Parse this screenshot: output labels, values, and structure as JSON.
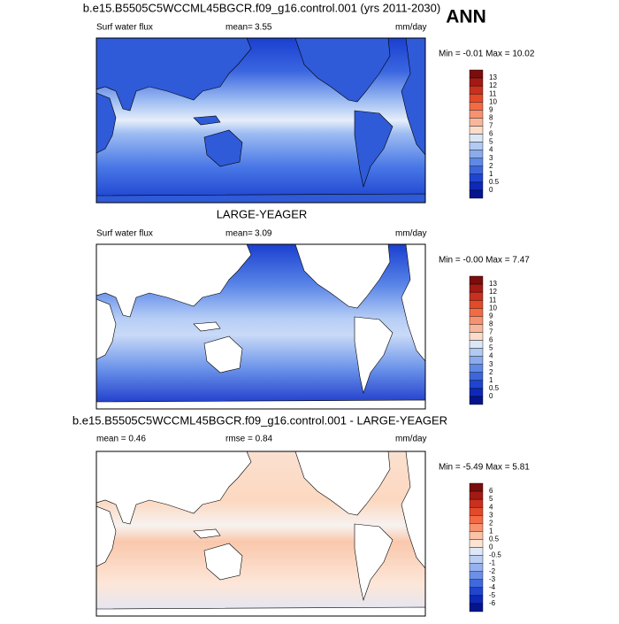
{
  "corner_label": "ANN",
  "panels": [
    {
      "title": "b.e15.B5505C5WCCML45BGCR.f09_g16.control.001 (yrs 2011-2030)",
      "left_label": "Surf water flux",
      "center_label": "mean=",
      "center_value": "3.55",
      "units": "mm/day",
      "min_max": "Min =  -0.01 Max =  10.02",
      "colorbar_labels": [
        "13",
        "12",
        "11",
        "10",
        "9",
        "8",
        "7",
        "6",
        "5",
        "4",
        "3",
        "2",
        "1",
        "0.5",
        "0"
      ]
    },
    {
      "title": "LARGE-YEAGER",
      "left_label": "Surf water flux",
      "center_label": "mean=",
      "center_value": "3.09",
      "units": "mm/day",
      "min_max": "Min =  -0.00 Max =  7.47",
      "colorbar_labels": [
        "13",
        "12",
        "11",
        "10",
        "9",
        "8",
        "7",
        "6",
        "5",
        "4",
        "3",
        "2",
        "1",
        "0.5",
        "0"
      ]
    },
    {
      "title": "b.e15.B5505C5WCCML45BGCR.f09_g16.control.001 - LARGE-YEAGER",
      "left_label": "mean =  0.46",
      "center_label": "rmse =  0.84",
      "units": "mm/day",
      "min_max": "Min =  -5.49 Max =  5.81",
      "colorbar_labels": [
        "6",
        "5",
        "4",
        "3",
        "2",
        "1",
        "0.5",
        "0",
        "-0.5",
        "-1",
        "-2",
        "-3",
        "-4",
        "-5",
        "-6"
      ]
    }
  ]
}
